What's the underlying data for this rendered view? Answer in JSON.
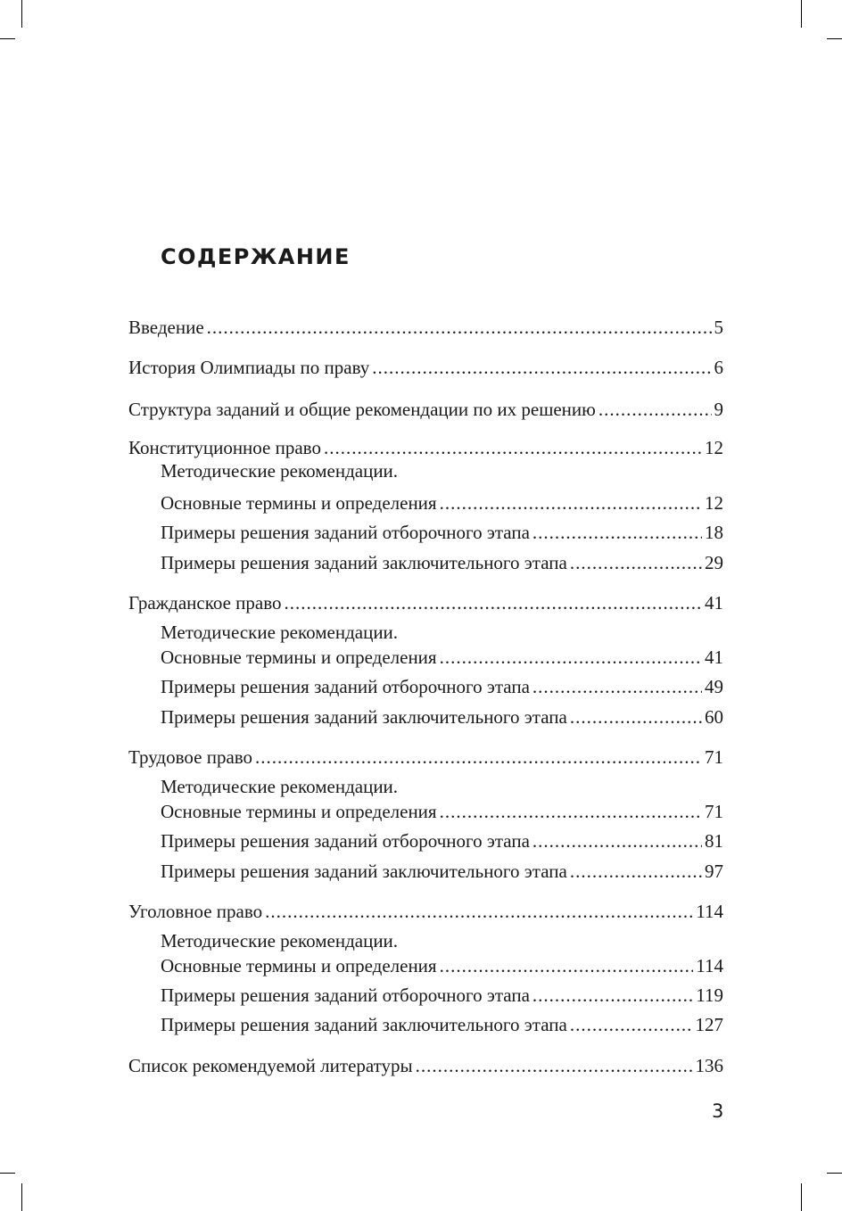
{
  "title": "СОДЕРЖАНИЕ",
  "entries": [
    {
      "title": "Введение",
      "page": "5"
    },
    {
      "title": "История Олимпиады по праву",
      "page": "6"
    },
    {
      "title": "Структура заданий и общие рекомендации по их решению",
      "page": "9"
    },
    {
      "title": "Конституционное право",
      "page": "12",
      "sub": [
        {
          "line1": "Методические рекомендации.",
          "title": "Основные термины и определения",
          "page": "12"
        },
        {
          "title": "Примеры решения заданий отборочного этапа",
          "page": "18"
        },
        {
          "title": "Примеры решения заданий заключительного этапа",
          "page": "29"
        }
      ]
    },
    {
      "title": "Гражданское право",
      "page": "41",
      "sub": [
        {
          "line1": "Методические рекомендации.",
          "title": "Основные термины и определения",
          "page": "41"
        },
        {
          "title": "Примеры решения заданий отборочного этапа",
          "page": "49"
        },
        {
          "title": "Примеры решения заданий заключительного этапа",
          "page": "60"
        }
      ]
    },
    {
      "title": "Трудовое право",
      "page": "71",
      "sub": [
        {
          "line1": "Методические рекомендации.",
          "title": "Основные термины и определения",
          "page": "71"
        },
        {
          "title": "Примеры решения заданий отборочного этапа",
          "page": "81"
        },
        {
          "title": "Примеры решения заданий заключительного этапа",
          "page": "97"
        }
      ]
    },
    {
      "title": "Уголовное право",
      "page": "114",
      "sub": [
        {
          "line1": "Методические рекомендации.",
          "title": "Основные термины и определения",
          "page": "114"
        },
        {
          "title": "Примеры решения заданий отборочного этапа",
          "page": "119"
        },
        {
          "title": "Примеры решения заданий заключительного этапа",
          "page": "127"
        }
      ]
    },
    {
      "title": "Список рекомендуемой литературы",
      "page": "136"
    }
  ],
  "page_number": "3"
}
